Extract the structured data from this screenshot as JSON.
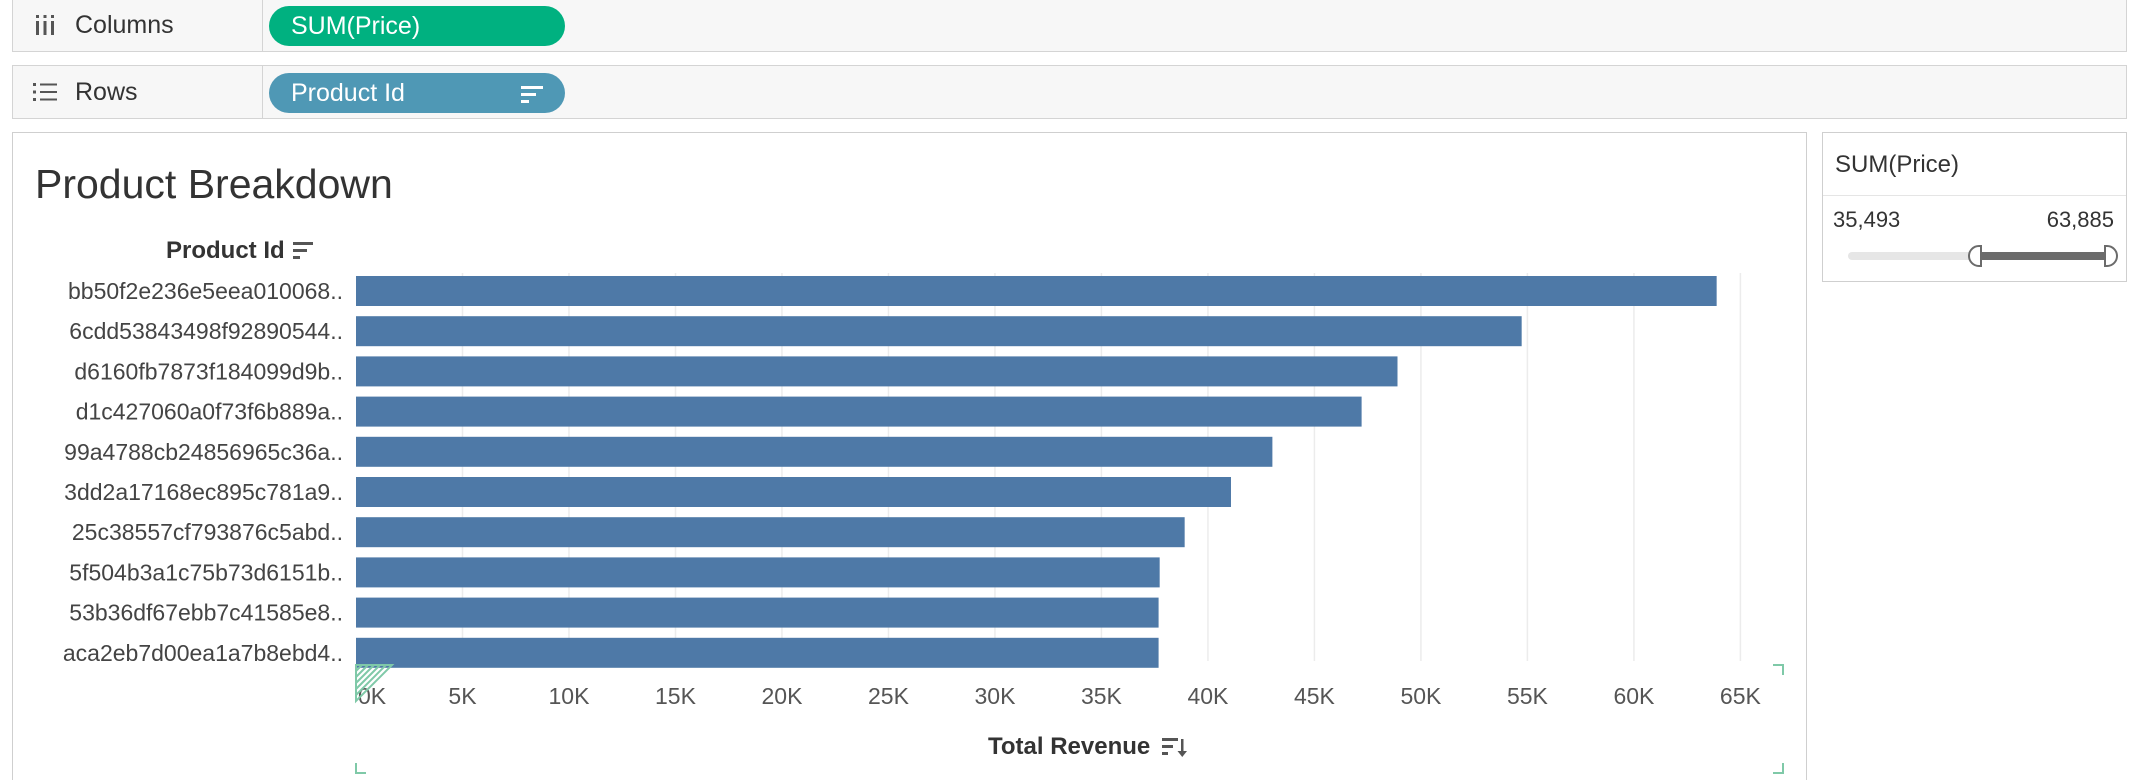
{
  "shelves": {
    "columns": {
      "label": "Columns",
      "icon": "columns-icon",
      "pill": "SUM(Price)",
      "pill_color": "#00b180"
    },
    "rows": {
      "label": "Rows",
      "icon": "rows-list-icon",
      "pill": "Product Id",
      "pill_color": "#4f98b5"
    }
  },
  "filter": {
    "title": "SUM(Price)",
    "min_label": "35,493",
    "max_label": "63,885",
    "selected_range": [
      0.52,
      1.0
    ]
  },
  "chart_data": {
    "type": "bar",
    "orientation": "horizontal",
    "title": "Product Breakdown",
    "row_header": "Product Id",
    "xlabel": "Total Revenue",
    "bar_color": "#4e79a7",
    "categories": [
      "bb50f2e236e5eea010068..",
      "6cdd53843498f92890544..",
      "d6160fb7873f184099d9b..",
      "d1c427060a0f73f6b889a..",
      "99a4788cb24856965c36a..",
      "3dd2a17168ec895c781a9..",
      "25c38557cf793876c5abd..",
      "5f504b3a1c75b73d6151b..",
      "53b36df67ebb7c41585e8..",
      "aca2eb7d00ea1a7b8ebd4.."
    ],
    "values": [
      63885,
      54730,
      48900,
      47215,
      43026,
      41082,
      38907,
      37734,
      37683,
      37683
    ],
    "xlim": [
      0,
      67000
    ],
    "x_ticks": [
      0,
      5000,
      10000,
      15000,
      20000,
      25000,
      30000,
      35000,
      40000,
      45000,
      50000,
      55000,
      60000,
      65000
    ],
    "x_tick_labels": [
      "0K",
      "5K",
      "10K",
      "15K",
      "20K",
      "25K",
      "30K",
      "35K",
      "40K",
      "45K",
      "50K",
      "55K",
      "60K",
      "65K"
    ],
    "grid": true
  }
}
